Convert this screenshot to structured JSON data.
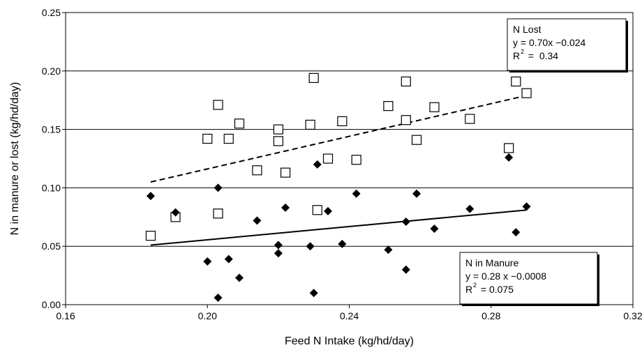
{
  "chart_data": {
    "type": "scatter",
    "xlabel": "Feed N Intake (kg/hd/day)",
    "ylabel": "N in manure or lost (kg/hd/day)",
    "xlim": [
      0.16,
      0.32
    ],
    "ylim": [
      0.0,
      0.25
    ],
    "x_ticks": [
      "0.16",
      "0.20",
      "0.24",
      "0.28",
      "0.32"
    ],
    "y_ticks": [
      "0.00",
      "0.05",
      "0.10",
      "0.15",
      "0.20",
      "0.25"
    ],
    "grid": "horizontal",
    "series": [
      {
        "name": "N Lost",
        "marker": "open-square",
        "color": "#000000",
        "x": [
          0.184,
          0.191,
          0.2,
          0.203,
          0.203,
          0.206,
          0.209,
          0.214,
          0.22,
          0.22,
          0.222,
          0.229,
          0.23,
          0.231,
          0.234,
          0.238,
          0.242,
          0.251,
          0.256,
          0.256,
          0.259,
          0.264,
          0.274,
          0.285,
          0.287,
          0.29
        ],
        "y": [
          0.059,
          0.075,
          0.142,
          0.171,
          0.078,
          0.142,
          0.155,
          0.115,
          0.15,
          0.14,
          0.113,
          0.154,
          0.194,
          0.081,
          0.125,
          0.157,
          0.124,
          0.17,
          0.191,
          0.158,
          0.141,
          0.169,
          0.159,
          0.134,
          0.191,
          0.181
        ],
        "trendline": {
          "style": "dashed",
          "x": [
            0.184,
            0.29
          ],
          "y": [
            0.105,
            0.179
          ]
        },
        "legend": {
          "name": "N Lost",
          "equation": "y = 0.70x −0.024",
          "r2_base": "R",
          "r2_sup": "2",
          "r2_value": " =  0.34"
        }
      },
      {
        "name": "N in Manure",
        "marker": "filled-diamond",
        "color": "#000000",
        "x": [
          0.184,
          0.191,
          0.2,
          0.203,
          0.203,
          0.206,
          0.209,
          0.214,
          0.22,
          0.22,
          0.222,
          0.229,
          0.23,
          0.231,
          0.234,
          0.238,
          0.242,
          0.251,
          0.256,
          0.256,
          0.259,
          0.264,
          0.274,
          0.285,
          0.287,
          0.29
        ],
        "y": [
          0.093,
          0.079,
          0.037,
          0.1,
          0.006,
          0.039,
          0.023,
          0.072,
          0.051,
          0.044,
          0.083,
          0.05,
          0.01,
          0.12,
          0.08,
          0.052,
          0.095,
          0.047,
          0.071,
          0.03,
          0.095,
          0.065,
          0.082,
          0.126,
          0.062,
          0.084
        ],
        "trendline": {
          "style": "solid",
          "x": [
            0.184,
            0.29
          ],
          "y": [
            0.051,
            0.081
          ]
        },
        "legend": {
          "name": "N in Manure",
          "equation": "y = 0.28 x −0.0008",
          "r2_base": "R",
          "r2_sup": "2",
          "r2_value": " = 0.075"
        }
      }
    ]
  }
}
